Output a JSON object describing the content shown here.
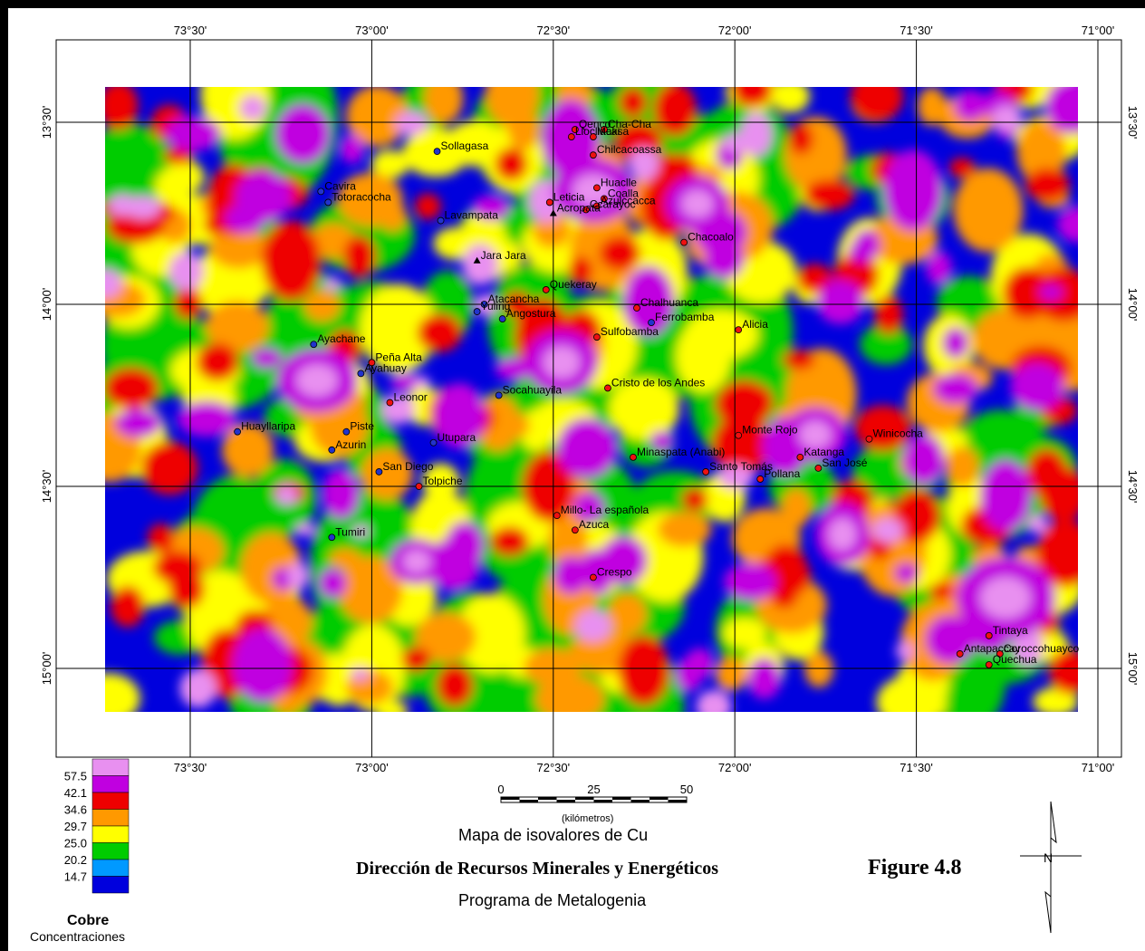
{
  "map": {
    "title": "Mapa de isovalores de Cu",
    "institution": "Dirección de Recursos Minerales y Energéticos",
    "program": "Programa de Metalogenia",
    "figure_label": "Figure 4.8",
    "lon_ticks": [
      "73°30'",
      "73°00'",
      "72°30'",
      "72°00'",
      "71°30'",
      "71°00'"
    ],
    "lat_ticks": [
      "13°30'",
      "14°00'",
      "14°30'",
      "15°00'"
    ],
    "scale": {
      "labels": [
        "0",
        "25",
        "50"
      ],
      "unit": "(kilómetros)"
    },
    "legend": {
      "title": "Cobre",
      "subtitle": "Concentraciones",
      "labels": [
        "57.5",
        "42.1",
        "34.6",
        "29.7",
        "25.0",
        "20.2",
        "14.7"
      ],
      "colors": [
        "#e890f0",
        "#c000e0",
        "#ee0000",
        "#ff9900",
        "#ffff00",
        "#00cc00",
        "#0099ff",
        "#0000dd"
      ]
    },
    "sites": [
      {
        "name": "Qenco",
        "lon": -72.44,
        "lat": -13.52,
        "type": "red"
      },
      {
        "name": "Cha-Cha",
        "lon": -72.36,
        "lat": -13.52,
        "type": "red"
      },
      {
        "name": "Llocllacasa",
        "lon": -72.45,
        "lat": -13.54,
        "type": "red"
      },
      {
        "name": "Maki",
        "lon": -72.39,
        "lat": -13.54,
        "type": "red"
      },
      {
        "name": "Chilcacoassa",
        "lon": -72.39,
        "lat": -13.59,
        "type": "red"
      },
      {
        "name": "Sollagasa",
        "lon": -72.82,
        "lat": -13.58,
        "type": "blue"
      },
      {
        "name": "Cavira",
        "lon": -73.14,
        "lat": -13.69,
        "type": "blue"
      },
      {
        "name": "Totoracocha",
        "lon": -73.12,
        "lat": -13.72,
        "type": "blue"
      },
      {
        "name": "Huaclle",
        "lon": -72.38,
        "lat": -13.68,
        "type": "red"
      },
      {
        "name": "Coalla",
        "lon": -72.36,
        "lat": -13.71,
        "type": "red"
      },
      {
        "name": "Leticia",
        "lon": -72.51,
        "lat": -13.72,
        "type": "red"
      },
      {
        "name": "Azulccacca",
        "lon": -72.38,
        "lat": -13.73,
        "type": "red"
      },
      {
        "name": "Lavampata",
        "lon": -72.81,
        "lat": -13.77,
        "type": "blue"
      },
      {
        "name": "Ccarayoc",
        "lon": -72.41,
        "lat": -13.74,
        "type": "red"
      },
      {
        "name": "Acropata",
        "lon": -72.5,
        "lat": -13.75,
        "type": "black"
      },
      {
        "name": "Chacoalo",
        "lon": -72.14,
        "lat": -13.83,
        "type": "red"
      },
      {
        "name": "Jara Jara",
        "lon": -72.71,
        "lat": -13.88,
        "type": "black"
      },
      {
        "name": "Quekeray",
        "lon": -72.52,
        "lat": -13.96,
        "type": "red"
      },
      {
        "name": "Atacancha",
        "lon": -72.69,
        "lat": -14.0,
        "type": "blue"
      },
      {
        "name": "Yuling",
        "lon": -72.71,
        "lat": -14.02,
        "type": "blue"
      },
      {
        "name": "Chalhuanca",
        "lon": -72.27,
        "lat": -14.01,
        "type": "red"
      },
      {
        "name": "Angostura",
        "lon": -72.64,
        "lat": -14.04,
        "type": "blue"
      },
      {
        "name": "Ferrobamba",
        "lon": -72.23,
        "lat": -14.05,
        "type": "blue"
      },
      {
        "name": "Alicia",
        "lon": -71.99,
        "lat": -14.07,
        "type": "red"
      },
      {
        "name": "Sulfobamba",
        "lon": -72.38,
        "lat": -14.09,
        "type": "red"
      },
      {
        "name": "Ayachane",
        "lon": -73.16,
        "lat": -14.11,
        "type": "blue"
      },
      {
        "name": "Peña Alta",
        "lon": -73.0,
        "lat": -14.16,
        "type": "red"
      },
      {
        "name": "Ayahuay",
        "lon": -73.03,
        "lat": -14.19,
        "type": "blue"
      },
      {
        "name": "Cristo de los Andes",
        "lon": -72.35,
        "lat": -14.23,
        "type": "red"
      },
      {
        "name": "Socahuayila",
        "lon": -72.65,
        "lat": -14.25,
        "type": "blue"
      },
      {
        "name": "Leonor",
        "lon": -72.95,
        "lat": -14.27,
        "type": "red"
      },
      {
        "name": "Huayllaripa",
        "lon": -73.37,
        "lat": -14.35,
        "type": "blue"
      },
      {
        "name": "Piste",
        "lon": -73.07,
        "lat": -14.35,
        "type": "blue"
      },
      {
        "name": "Utupara",
        "lon": -72.83,
        "lat": -14.38,
        "type": "blue"
      },
      {
        "name": "Monte Rojo",
        "lon": -71.99,
        "lat": -14.36,
        "type": "red"
      },
      {
        "name": "Winicocha",
        "lon": -71.63,
        "lat": -14.37,
        "type": "red"
      },
      {
        "name": "Azurin",
        "lon": -73.11,
        "lat": -14.4,
        "type": "blue"
      },
      {
        "name": "Minaspata (Anabi)",
        "lon": -72.28,
        "lat": -14.42,
        "type": "red"
      },
      {
        "name": "Katanga",
        "lon": -71.82,
        "lat": -14.42,
        "type": "red"
      },
      {
        "name": "San José",
        "lon": -71.77,
        "lat": -14.45,
        "type": "red"
      },
      {
        "name": "San Diego",
        "lon": -72.98,
        "lat": -14.46,
        "type": "blue"
      },
      {
        "name": "Santo Tomás",
        "lon": -72.08,
        "lat": -14.46,
        "type": "red"
      },
      {
        "name": "Pollana",
        "lon": -71.93,
        "lat": -14.48,
        "type": "red"
      },
      {
        "name": "Tolpiche",
        "lon": -72.87,
        "lat": -14.5,
        "type": "red"
      },
      {
        "name": "Millo- La española",
        "lon": -72.49,
        "lat": -14.58,
        "type": "red"
      },
      {
        "name": "Azuca",
        "lon": -72.44,
        "lat": -14.62,
        "type": "red"
      },
      {
        "name": "Tumiri",
        "lon": -73.11,
        "lat": -14.64,
        "type": "blue"
      },
      {
        "name": "Crespo",
        "lon": -72.39,
        "lat": -14.75,
        "type": "red"
      },
      {
        "name": "Tintaya",
        "lon": -71.3,
        "lat": -14.91,
        "type": "red"
      },
      {
        "name": "Antapaccay",
        "lon": -71.38,
        "lat": -14.96,
        "type": "red"
      },
      {
        "name": "Coroccohuayco",
        "lon": -71.27,
        "lat": -14.96,
        "type": "red"
      },
      {
        "name": "Quechua",
        "lon": -71.3,
        "lat": -14.99,
        "type": "red"
      }
    ]
  }
}
